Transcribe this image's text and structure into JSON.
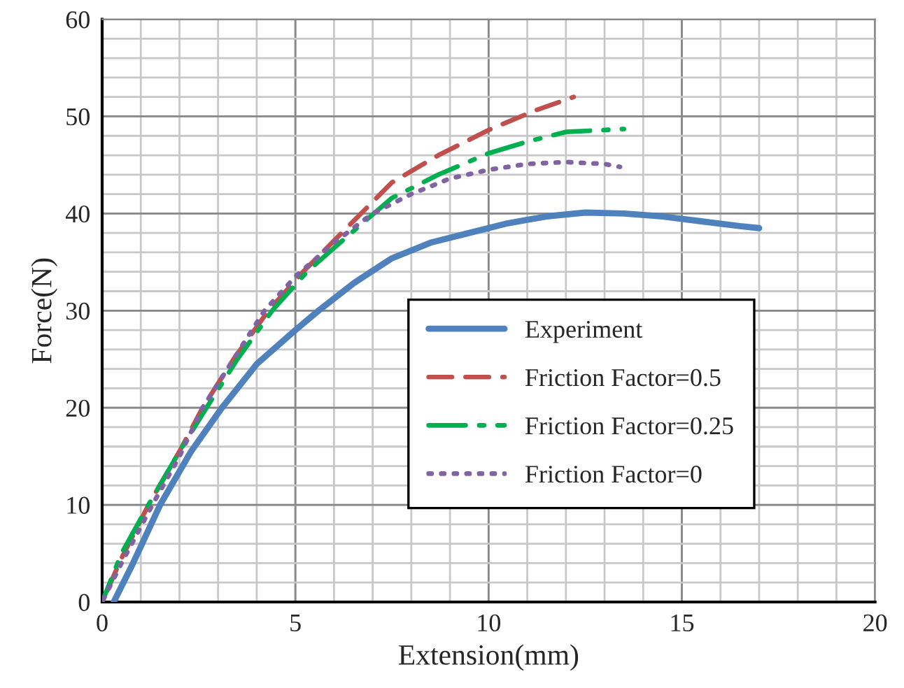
{
  "chart_data": {
    "type": "line",
    "xlabel": "Extension(mm)",
    "ylabel": "Force(N)",
    "xlim": [
      0,
      20
    ],
    "ylim": [
      0,
      60
    ],
    "xticks": [
      0,
      5,
      10,
      15,
      20
    ],
    "yticks": [
      0,
      10,
      20,
      30,
      40,
      50,
      60
    ],
    "grid": true,
    "legend": "right",
    "marker": "none",
    "series": [
      {
        "name": "Experiment",
        "color": "#4f81bd",
        "line_style": "solid",
        "x": [
          0.3,
          0.8,
          1.5,
          2.3,
          3.1,
          4.0,
          5.0,
          5.6,
          6.5,
          7.5,
          8.5,
          9.5,
          10.5,
          11.5,
          12.5,
          13.5,
          14.5,
          15.5,
          16.5,
          17.0
        ],
        "values": [
          0,
          4,
          10,
          15.5,
          20,
          24.5,
          28,
          30,
          32.8,
          35.4,
          37,
          38,
          39,
          39.7,
          40.1,
          40,
          39.7,
          39.2,
          38.7,
          38.5
        ]
      },
      {
        "name": "Friction Factor=0.5",
        "color": "#c0504d",
        "line_style": "dashed",
        "x": [
          0,
          0.5,
          1.2,
          2.0,
          2.6,
          3.4,
          4.3,
          5.2,
          6.2,
          7.5,
          8.7,
          10.0,
          11.2,
          12.2
        ],
        "values": [
          0,
          4.5,
          10,
          15.5,
          20,
          25,
          30,
          34,
          38,
          43.2,
          46,
          48.6,
          50.6,
          52
        ]
      },
      {
        "name": "Friction Factor=0.25",
        "color": "#00b050",
        "line_style": "dashdot",
        "x": [
          0,
          0.5,
          1.2,
          2.0,
          2.7,
          3.5,
          4.4,
          5.3,
          6.3,
          7.5,
          8.7,
          10.0,
          11.0,
          12.0,
          13.5
        ],
        "values": [
          0,
          5,
          10,
          15.5,
          20,
          25,
          30,
          34,
          37.5,
          41.6,
          44,
          46.2,
          47.4,
          48.4,
          48.7
        ]
      },
      {
        "name": "Friction Factor=0",
        "color": "#8064a2",
        "line_style": "dotted",
        "x": [
          0,
          0.5,
          1.3,
          2.0,
          2.6,
          3.4,
          4.2,
          5.0,
          6.0,
          7.0,
          8.0,
          9.0,
          10.0,
          11.0,
          12.0,
          13.0,
          13.4
        ],
        "values": [
          0,
          4,
          10,
          15,
          20,
          25,
          30,
          33.5,
          37,
          40,
          42,
          43.6,
          44.5,
          45.1,
          45.3,
          45.1,
          44.8
        ]
      }
    ]
  }
}
